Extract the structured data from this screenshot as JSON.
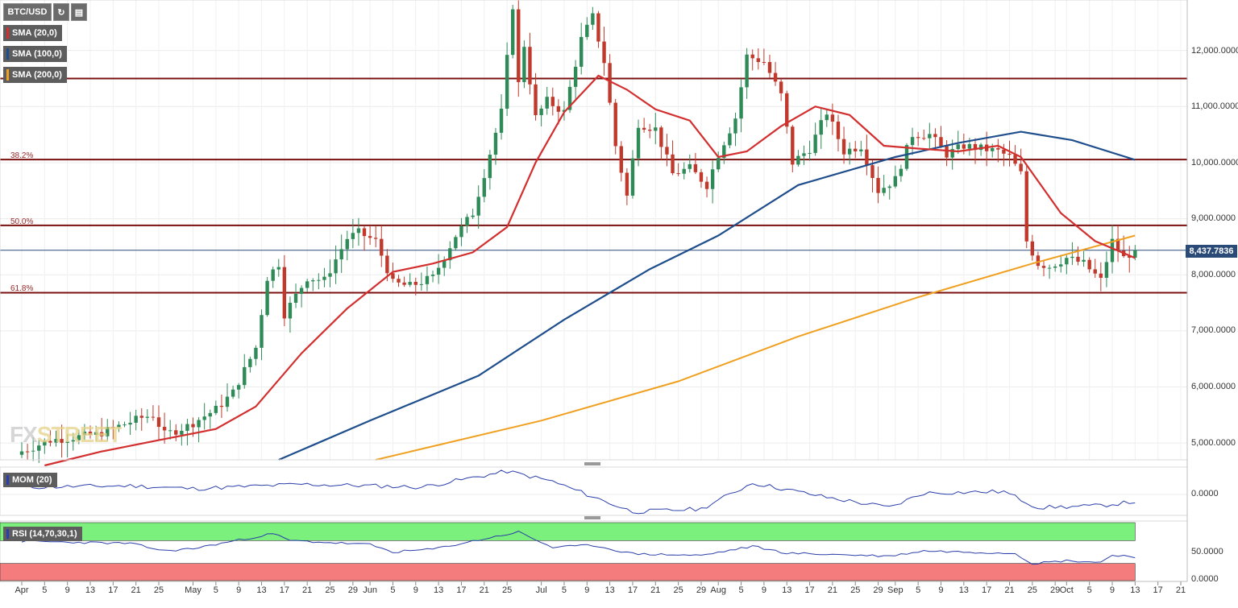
{
  "toolbar": {
    "symbol": "BTC/USD"
  },
  "price_axis": {
    "labels": [
      "5,000.0000",
      "6,000.0000",
      "7,000.0000",
      "8,000.0000",
      "9,000.0000",
      "10,000.0000",
      "11,000.0000",
      "12,000.0000"
    ],
    "current_price": "8,437.7836"
  },
  "mom_axis": {
    "label": "0.0000"
  },
  "rsi_axis": {
    "labels": [
      "0.0000",
      "50.0000"
    ]
  },
  "date_axis": [
    "Apr",
    "5",
    "9",
    "13",
    "17",
    "21",
    "25",
    "May",
    "5",
    "9",
    "13",
    "17",
    "21",
    "25",
    "29",
    "Jun",
    "5",
    "9",
    "13",
    "17",
    "21",
    "25",
    "Jul",
    "5",
    "9",
    "13",
    "17",
    "21",
    "25",
    "29",
    "Aug",
    "5",
    "9",
    "13",
    "17",
    "21",
    "25",
    "29",
    "Sep",
    "5",
    "9",
    "13",
    "17",
    "21",
    "25",
    "29",
    "Oct",
    "5",
    "9",
    "13",
    "17",
    "21"
  ],
  "watermark": {
    "part1": "FX",
    "part2": "STREET"
  },
  "indicators": {
    "sma20": {
      "label": "SMA (20,0)",
      "color": "#d32f2f"
    },
    "sma100": {
      "label": "SMA (100,0)",
      "color": "#1f4e8c"
    },
    "sma200": {
      "label": "SMA (200,0)",
      "color": "#f0a020"
    },
    "mom": {
      "label": "MOM (20)",
      "color": "#2a3faa"
    },
    "rsi": {
      "label": "RSI (14,70,30,1)",
      "color": "#2a3faa"
    }
  },
  "fib_levels": [
    {
      "label": "38.2%",
      "value": 10055
    },
    {
      "label": "50.0%",
      "value": 8880
    },
    {
      "label": "61.8%",
      "value": 7680
    }
  ],
  "chart_data": {
    "type": "candlestick",
    "symbol": "BTC/USD",
    "ylim": [
      4700,
      12900
    ],
    "xlim": [
      "2019-04-01",
      "2019-10-21"
    ],
    "horizontal_lines": [
      11500,
      10055,
      8880,
      7680
    ],
    "current_price": 8437.78,
    "candle_color_up": "#2e8b57",
    "candle_color_down": "#c0392b",
    "close_anchors": [
      [
        "2019-04-01",
        4850
      ],
      [
        "2019-04-06",
        5050
      ],
      [
        "2019-04-14",
        5150
      ],
      [
        "2019-04-22",
        5450
      ],
      [
        "2019-04-24",
        5500
      ],
      [
        "2019-04-26",
        5150
      ],
      [
        "2019-04-30",
        5300
      ],
      [
        "2019-05-05",
        5600
      ],
      [
        "2019-05-08",
        5900
      ],
      [
        "2019-05-12",
        6700
      ],
      [
        "2019-05-14",
        7950
      ],
      [
        "2019-05-16",
        8200
      ],
      [
        "2019-05-17",
        7300
      ],
      [
        "2019-05-21",
        7950
      ],
      [
        "2019-05-24",
        7900
      ],
      [
        "2019-05-28",
        8650
      ],
      [
        "2019-05-30",
        8750
      ],
      [
        "2019-06-02",
        8600
      ],
      [
        "2019-06-05",
        7850
      ],
      [
        "2019-06-08",
        7800
      ],
      [
        "2019-06-12",
        7950
      ],
      [
        "2019-06-16",
        8700
      ],
      [
        "2019-06-19",
        9100
      ],
      [
        "2019-06-21",
        9800
      ],
      [
        "2019-06-24",
        10900
      ],
      [
        "2019-06-26",
        12800
      ],
      [
        "2019-06-27",
        11400
      ],
      [
        "2019-06-28",
        12100
      ],
      [
        "2019-06-30",
        10800
      ],
      [
        "2019-07-02",
        11100
      ],
      [
        "2019-07-05",
        10900
      ],
      [
        "2019-07-08",
        12200
      ],
      [
        "2019-07-10",
        12600
      ],
      [
        "2019-07-12",
        11800
      ],
      [
        "2019-07-14",
        10300
      ],
      [
        "2019-07-16",
        9400
      ],
      [
        "2019-07-18",
        10700
      ],
      [
        "2019-07-21",
        10600
      ],
      [
        "2019-07-24",
        9800
      ],
      [
        "2019-07-27",
        9900
      ],
      [
        "2019-07-30",
        9600
      ],
      [
        "2019-08-01",
        10150
      ],
      [
        "2019-08-04",
        10800
      ],
      [
        "2019-08-06",
        11900
      ],
      [
        "2019-08-09",
        11800
      ],
      [
        "2019-08-12",
        11200
      ],
      [
        "2019-08-14",
        10000
      ],
      [
        "2019-08-17",
        10250
      ],
      [
        "2019-08-20",
        10900
      ],
      [
        "2019-08-23",
        10200
      ],
      [
        "2019-08-26",
        10300
      ],
      [
        "2019-08-29",
        9500
      ],
      [
        "2019-09-01",
        9700
      ],
      [
        "2019-09-04",
        10500
      ],
      [
        "2019-09-07",
        10500
      ],
      [
        "2019-09-10",
        10150
      ],
      [
        "2019-09-13",
        10300
      ],
      [
        "2019-09-16",
        10250
      ],
      [
        "2019-09-19",
        10200
      ],
      [
        "2019-09-21",
        10100
      ],
      [
        "2019-09-23",
        9800
      ],
      [
        "2019-09-24",
        8600
      ],
      [
        "2019-09-26",
        8200
      ],
      [
        "2019-09-28",
        8150
      ],
      [
        "2019-10-01",
        8300
      ],
      [
        "2019-10-04",
        8200
      ],
      [
        "2019-10-07",
        7900
      ],
      [
        "2019-10-09",
        8600
      ],
      [
        "2019-10-11",
        8300
      ],
      [
        "2019-10-13",
        8437.78
      ]
    ],
    "sma20_points": [
      [
        "2019-04-05",
        4600
      ],
      [
        "2019-04-15",
        4850
      ],
      [
        "2019-04-25",
        5050
      ],
      [
        "2019-05-05",
        5250
      ],
      [
        "2019-05-12",
        5650
      ],
      [
        "2019-05-20",
        6600
      ],
      [
        "2019-05-28",
        7400
      ],
      [
        "2019-06-05",
        8050
      ],
      [
        "2019-06-12",
        8200
      ],
      [
        "2019-06-19",
        8400
      ],
      [
        "2019-06-25",
        8850
      ],
      [
        "2019-06-30",
        10000
      ],
      [
        "2019-07-05",
        10900
      ],
      [
        "2019-07-11",
        11550
      ],
      [
        "2019-07-16",
        11300
      ],
      [
        "2019-07-21",
        10950
      ],
      [
        "2019-07-27",
        10750
      ],
      [
        "2019-08-01",
        10100
      ],
      [
        "2019-08-06",
        10200
      ],
      [
        "2019-08-12",
        10650
      ],
      [
        "2019-08-18",
        11000
      ],
      [
        "2019-08-24",
        10850
      ],
      [
        "2019-08-30",
        10300
      ],
      [
        "2019-09-05",
        10250
      ],
      [
        "2019-09-12",
        10200
      ],
      [
        "2019-09-19",
        10300
      ],
      [
        "2019-09-23",
        10100
      ],
      [
        "2019-09-30",
        9100
      ],
      [
        "2019-10-06",
        8600
      ],
      [
        "2019-10-13",
        8300
      ]
    ],
    "sma100_points": [
      [
        "2019-05-16",
        4700
      ],
      [
        "2019-06-01",
        5400
      ],
      [
        "2019-06-20",
        6200
      ],
      [
        "2019-07-05",
        7200
      ],
      [
        "2019-07-20",
        8100
      ],
      [
        "2019-08-01",
        8700
      ],
      [
        "2019-08-15",
        9600
      ],
      [
        "2019-09-01",
        10100
      ],
      [
        "2019-09-12",
        10350
      ],
      [
        "2019-09-23",
        10550
      ],
      [
        "2019-10-02",
        10400
      ],
      [
        "2019-10-13",
        10050
      ]
    ],
    "sma200_points": [
      [
        "2019-06-02",
        4700
      ],
      [
        "2019-07-01",
        5400
      ],
      [
        "2019-07-25",
        6100
      ],
      [
        "2019-08-15",
        6900
      ],
      [
        "2019-09-05",
        7600
      ],
      [
        "2019-09-25",
        8200
      ],
      [
        "2019-10-13",
        8700
      ]
    ],
    "mom_series": [
      [
        "2019-04-01",
        0.5
      ],
      [
        "2019-04-20",
        0.6
      ],
      [
        "2019-05-01",
        0.4
      ],
      [
        "2019-05-20",
        0.7
      ],
      [
        "2019-06-01",
        0.6
      ],
      [
        "2019-06-10",
        0.5
      ],
      [
        "2019-06-25",
        1.6
      ],
      [
        "2019-07-03",
        0.9
      ],
      [
        "2019-07-17",
        -1.2
      ],
      [
        "2019-07-29",
        -1.0
      ],
      [
        "2019-08-07",
        0.8
      ],
      [
        "2019-08-20",
        -0.2
      ],
      [
        "2019-08-31",
        -0.9
      ],
      [
        "2019-09-06",
        0.1
      ],
      [
        "2019-09-20",
        0.2
      ],
      [
        "2019-09-26",
        -0.9
      ],
      [
        "2019-10-06",
        -0.8
      ],
      [
        "2019-10-13",
        -0.5
      ]
    ],
    "rsi_series": [
      [
        "2019-04-01",
        69
      ],
      [
        "2019-04-20",
        65
      ],
      [
        "2019-04-26",
        52
      ],
      [
        "2019-05-01",
        56
      ],
      [
        "2019-05-15",
        82
      ],
      [
        "2019-05-18",
        70
      ],
      [
        "2019-06-01",
        63
      ],
      [
        "2019-06-05",
        50
      ],
      [
        "2019-06-12",
        55
      ],
      [
        "2019-06-27",
        85
      ],
      [
        "2019-07-03",
        58
      ],
      [
        "2019-07-10",
        62
      ],
      [
        "2019-07-17",
        47
      ],
      [
        "2019-07-29",
        44
      ],
      [
        "2019-08-07",
        60
      ],
      [
        "2019-08-13",
        48
      ],
      [
        "2019-08-31",
        43
      ],
      [
        "2019-09-06",
        52
      ],
      [
        "2019-09-22",
        48
      ],
      [
        "2019-09-25",
        30
      ],
      [
        "2019-10-01",
        35
      ],
      [
        "2019-10-07",
        32
      ],
      [
        "2019-10-09",
        45
      ],
      [
        "2019-10-13",
        42
      ]
    ],
    "rsi_levels": [
      70,
      30
    ]
  }
}
